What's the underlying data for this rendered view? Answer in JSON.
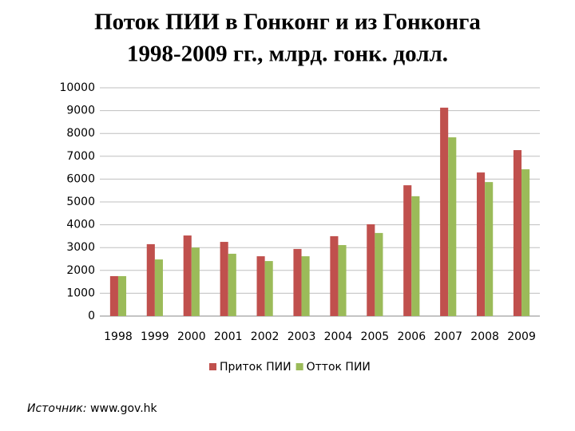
{
  "chart_data": {
    "type": "bar",
    "title": "Поток ПИИ в Гонконг и из Гонконга",
    "subtitle": "1998-2009 гг., млрд. гонк. долл.",
    "categories": [
      "1998",
      "1999",
      "2000",
      "2001",
      "2002",
      "2003",
      "2004",
      "2005",
      "2006",
      "2007",
      "2008",
      "2009"
    ],
    "series": [
      {
        "name": "Приток ПИИ",
        "color": "#c0504d",
        "values": [
          1750,
          3150,
          3530,
          3250,
          2620,
          2940,
          3500,
          4020,
          5730,
          9130,
          6290,
          7270
        ]
      },
      {
        "name": "Отток ПИИ",
        "color": "#9bbb59",
        "values": [
          1750,
          2480,
          3000,
          2730,
          2410,
          2620,
          3110,
          3640,
          5250,
          7830,
          5870,
          6430
        ]
      }
    ],
    "ylim": [
      0,
      10000
    ],
    "yticks": [
      0,
      1000,
      2000,
      3000,
      4000,
      5000,
      6000,
      7000,
      8000,
      9000,
      10000
    ],
    "grid": true,
    "legend": "bottom",
    "source": {
      "label": "Источник:",
      "text": "www.gov.hk"
    }
  }
}
